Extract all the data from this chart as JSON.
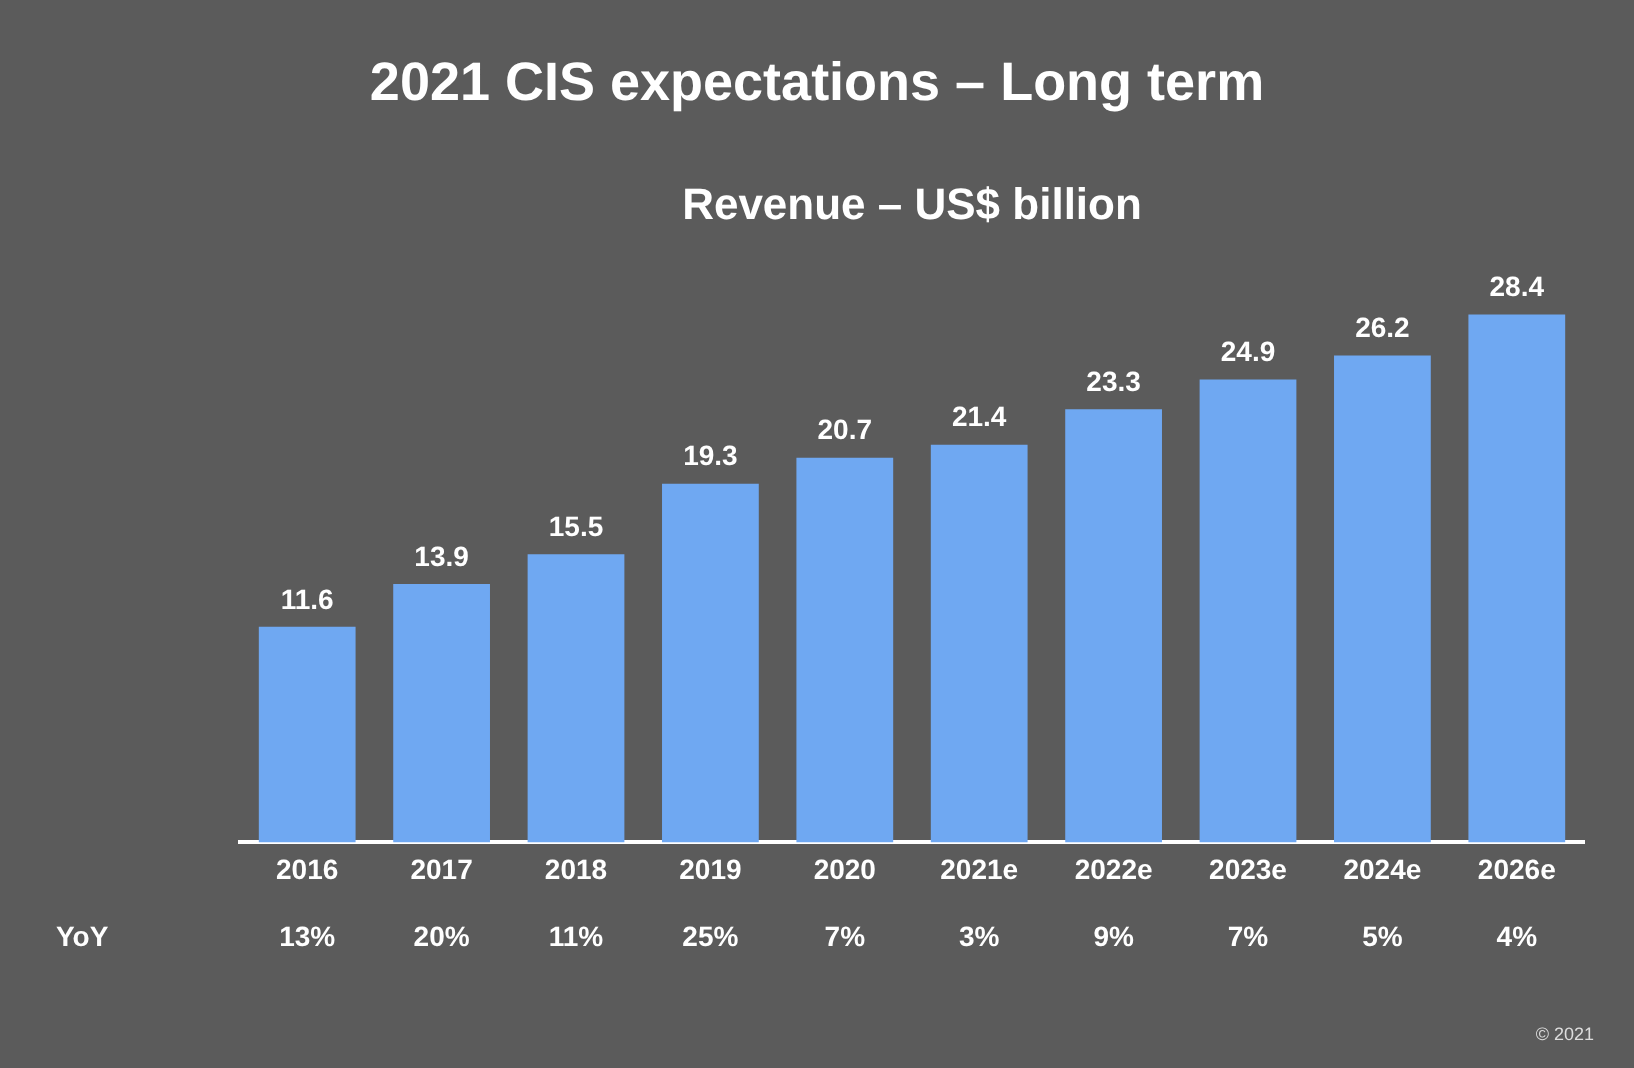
{
  "chart_data": {
    "type": "bar",
    "title": "2021 CIS expectations – Long term",
    "subtitle": "Revenue – US$ billion",
    "categories": [
      "2016",
      "2017",
      "2018",
      "2019",
      "2020",
      "2021e",
      "2022e",
      "2023e",
      "2024e",
      "2026e"
    ],
    "values": [
      11.6,
      13.9,
      15.5,
      19.3,
      20.7,
      21.4,
      23.3,
      24.9,
      26.2,
      28.4
    ],
    "color": "#6fa8f2",
    "data_labels": true,
    "grid": false,
    "legend": false,
    "annotations": [
      "YoY",
      "13%",
      "20%",
      "11%",
      "25%",
      "7%",
      "3%",
      "9%",
      "7%",
      "5%",
      "4%",
      "© 2021"
    ]
  }
}
